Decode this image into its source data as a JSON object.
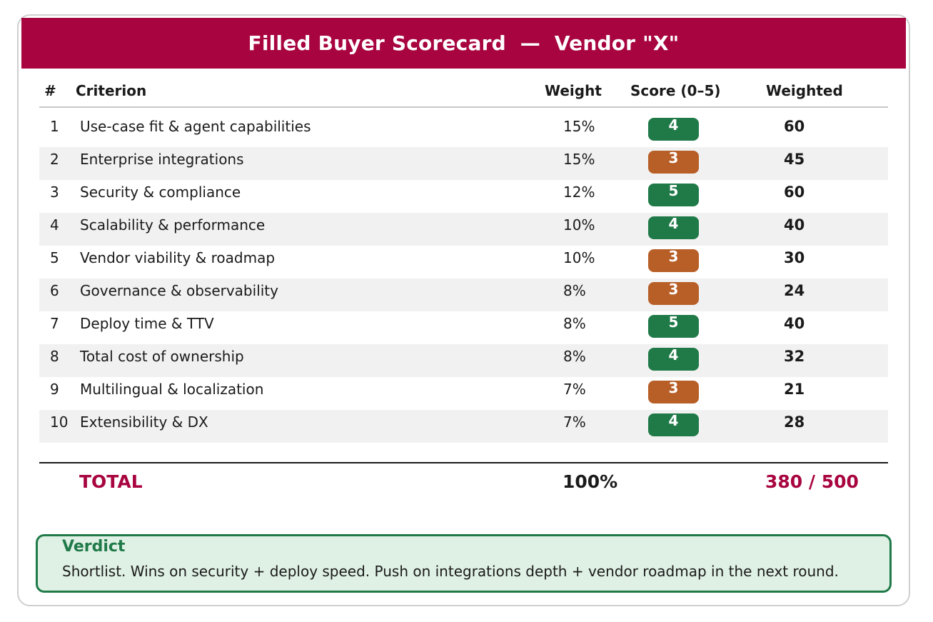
{
  "title": "Filled Buyer Scorecard  —  Vendor \"X\"",
  "columns": {
    "num": "#",
    "criterion": "Criterion",
    "weight": "Weight",
    "score": "Score (0–5)",
    "weighted": "Weighted"
  },
  "colors": {
    "brand": "#a8043f",
    "score_high": "#1f7a48",
    "score_mid": "#b85e27",
    "verdict_bg": "#dff0e4"
  },
  "rows": [
    {
      "num": "1",
      "criterion": "Use-case fit & agent capabilities",
      "weight": "15%",
      "score": "4",
      "weighted": "60"
    },
    {
      "num": "2",
      "criterion": "Enterprise integrations",
      "weight": "15%",
      "score": "3",
      "weighted": "45"
    },
    {
      "num": "3",
      "criterion": "Security & compliance",
      "weight": "12%",
      "score": "5",
      "weighted": "60"
    },
    {
      "num": "4",
      "criterion": "Scalability & performance",
      "weight": "10%",
      "score": "4",
      "weighted": "40"
    },
    {
      "num": "5",
      "criterion": "Vendor viability & roadmap",
      "weight": "10%",
      "score": "3",
      "weighted": "30"
    },
    {
      "num": "6",
      "criterion": "Governance & observability",
      "weight": "8%",
      "score": "3",
      "weighted": "24"
    },
    {
      "num": "7",
      "criterion": "Deploy time & TTV",
      "weight": "8%",
      "score": "5",
      "weighted": "40"
    },
    {
      "num": "8",
      "criterion": "Total cost of ownership",
      "weight": "8%",
      "score": "4",
      "weighted": "32"
    },
    {
      "num": "9",
      "criterion": "Multilingual & localization",
      "weight": "7%",
      "score": "3",
      "weighted": "21"
    },
    {
      "num": "10",
      "criterion": "Extensibility & DX",
      "weight": "7%",
      "score": "4",
      "weighted": "28"
    }
  ],
  "total": {
    "label": "TOTAL",
    "weight": "100%",
    "score": "380 / 500"
  },
  "verdict": {
    "title": "Verdict",
    "text": "Shortlist. Wins on security + deploy speed. Push on integrations depth + vendor roadmap in the next round."
  }
}
